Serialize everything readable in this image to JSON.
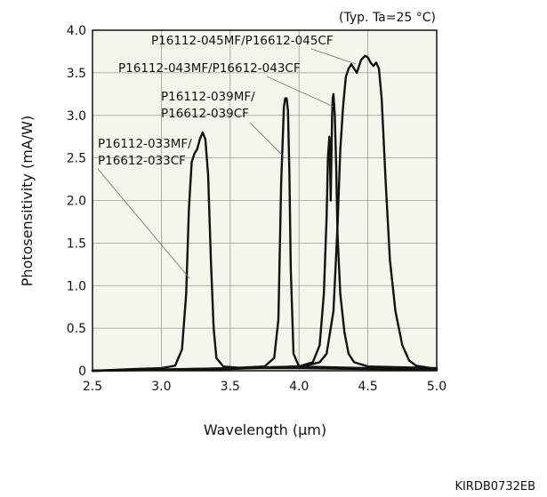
{
  "chart_data": {
    "type": "line",
    "note": "(Typ. Ta=25 °C)",
    "xlabel": "Wavelength (μm)",
    "ylabel": "Photosensitivity (mA/W)",
    "xlim": [
      2.5,
      5.0
    ],
    "ylim": [
      0,
      4.0
    ],
    "x_ticks": [
      "2.5",
      "3.0",
      "3.5",
      "4.0",
      "4.5",
      "5.0"
    ],
    "y_ticks": [
      "0",
      "0.5",
      "1.0",
      "1.5",
      "2.0",
      "2.5",
      "3.0",
      "3.5",
      "4.0"
    ],
    "grid": true,
    "background": "#f6f5ec",
    "line_color": "#111111",
    "series": [
      {
        "name": "P16112-033MF/\nP16612-033CF",
        "label_lines": [
          "P16112-033MF/",
          "P16612-033CF"
        ],
        "x": [
          2.5,
          2.8,
          3.0,
          3.1,
          3.15,
          3.18,
          3.2,
          3.22,
          3.24,
          3.26,
          3.28,
          3.3,
          3.32,
          3.34,
          3.36,
          3.38,
          3.4,
          3.45,
          3.6,
          4.0,
          4.5,
          5.0
        ],
        "y": [
          0.0,
          0.02,
          0.03,
          0.06,
          0.25,
          0.9,
          1.9,
          2.45,
          2.55,
          2.6,
          2.72,
          2.8,
          2.72,
          2.3,
          1.3,
          0.5,
          0.15,
          0.05,
          0.03,
          0.03,
          0.02,
          0.01
        ]
      },
      {
        "name": "P16112-039MF/\nP16612-039CF",
        "label_lines": [
          "P16112-039MF/",
          "P16612-039CF"
        ],
        "x": [
          2.5,
          3.0,
          3.5,
          3.75,
          3.82,
          3.85,
          3.87,
          3.89,
          3.9,
          3.91,
          3.92,
          3.93,
          3.94,
          3.96,
          4.0,
          4.5,
          5.0
        ],
        "y": [
          0.0,
          0.01,
          0.03,
          0.05,
          0.15,
          0.6,
          2.2,
          3.1,
          3.2,
          3.2,
          3.05,
          2.3,
          1.2,
          0.2,
          0.05,
          0.03,
          0.02
        ]
      },
      {
        "name": "P16112-043MF/P16612-043CF",
        "label_lines": [
          "P16112-043MF/P16612-043CF"
        ],
        "x": [
          2.5,
          3.5,
          4.0,
          4.1,
          4.15,
          4.18,
          4.2,
          4.21,
          4.22,
          4.225,
          4.23,
          4.235,
          4.24,
          4.245,
          4.25,
          4.26,
          4.27,
          4.28,
          4.3,
          4.33,
          4.36,
          4.4,
          4.5,
          5.0
        ],
        "y": [
          0.0,
          0.02,
          0.05,
          0.1,
          0.3,
          0.9,
          1.8,
          2.5,
          2.75,
          2.5,
          2.0,
          2.5,
          3.0,
          3.2,
          3.25,
          3.0,
          2.4,
          1.6,
          0.9,
          0.45,
          0.2,
          0.1,
          0.05,
          0.03
        ]
      },
      {
        "name": "P16112-045MF/P16612-045CF",
        "label_lines": [
          "P16112-045MF/P16612-045CF"
        ],
        "x": [
          2.5,
          3.5,
          4.0,
          4.1,
          4.15,
          4.2,
          4.25,
          4.28,
          4.3,
          4.32,
          4.34,
          4.36,
          4.38,
          4.4,
          4.42,
          4.45,
          4.48,
          4.5,
          4.52,
          4.54,
          4.56,
          4.58,
          4.6,
          4.63,
          4.66,
          4.7,
          4.75,
          4.8,
          4.85,
          5.0
        ],
        "y": [
          0.0,
          0.03,
          0.05,
          0.08,
          0.1,
          0.2,
          0.7,
          1.7,
          2.6,
          3.1,
          3.45,
          3.55,
          3.6,
          3.55,
          3.5,
          3.65,
          3.7,
          3.68,
          3.62,
          3.58,
          3.62,
          3.55,
          3.2,
          2.2,
          1.3,
          0.7,
          0.3,
          0.12,
          0.06,
          0.02
        ]
      }
    ]
  },
  "figure_code": "KIRDB0732EB"
}
